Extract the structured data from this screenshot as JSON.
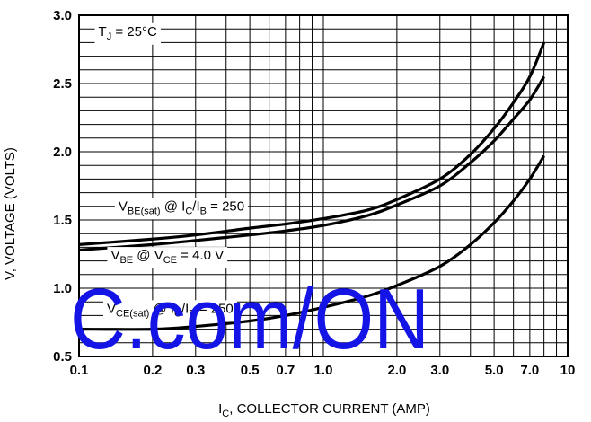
{
  "chart_data": {
    "type": "line",
    "xscale": "log",
    "xlim": [
      0.1,
      10
    ],
    "ylim": [
      0.5,
      3.0
    ],
    "grid": true,
    "xlabel": {
      "main": "I",
      "sub": "C",
      "rest": ", COLLECTOR CURRENT (AMP)"
    },
    "ylabel": "V, VOLTAGE (VOLTS)",
    "x_ticks": [
      {
        "value": 0.1,
        "label": "0.1"
      },
      {
        "value": 0.2,
        "label": "0.2"
      },
      {
        "value": 0.3,
        "label": "0.3"
      },
      {
        "value": 0.5,
        "label": "0.5"
      },
      {
        "value": 0.7,
        "label": "0.7"
      },
      {
        "value": 1.0,
        "label": "1.0"
      },
      {
        "value": 2.0,
        "label": "2.0"
      },
      {
        "value": 3.0,
        "label": "3.0"
      },
      {
        "value": 5.0,
        "label": "5.0"
      },
      {
        "value": 7.0,
        "label": "7.0"
      },
      {
        "value": 10,
        "label": "10"
      }
    ],
    "y_ticks": [
      {
        "value": 0.5,
        "label": "0.5"
      },
      {
        "value": 1.0,
        "label": "1.0"
      },
      {
        "value": 1.5,
        "label": "1.5"
      },
      {
        "value": 2.0,
        "label": "2.0"
      },
      {
        "value": 2.5,
        "label": "2.5"
      },
      {
        "value": 3.0,
        "label": "3.0"
      }
    ],
    "series": [
      {
        "id": "vbe-sat",
        "x": [
          0.1,
          0.2,
          0.3,
          0.5,
          0.7,
          1.0,
          1.5,
          2.0,
          3.0,
          4.0,
          5.0,
          6.0,
          7.0,
          8.0
        ],
        "y": [
          1.32,
          1.36,
          1.39,
          1.44,
          1.47,
          1.51,
          1.57,
          1.65,
          1.8,
          1.98,
          2.17,
          2.36,
          2.55,
          2.8
        ]
      },
      {
        "id": "vbe-on",
        "x": [
          0.1,
          0.2,
          0.3,
          0.5,
          0.7,
          1.0,
          1.5,
          2.0,
          3.0,
          4.0,
          5.0,
          6.0,
          7.0,
          8.0
        ],
        "y": [
          1.28,
          1.32,
          1.35,
          1.39,
          1.42,
          1.46,
          1.53,
          1.61,
          1.75,
          1.92,
          2.08,
          2.24,
          2.38,
          2.55
        ]
      },
      {
        "id": "vce-sat",
        "x": [
          0.1,
          0.2,
          0.3,
          0.5,
          0.7,
          1.0,
          1.5,
          2.0,
          3.0,
          4.0,
          5.0,
          6.0,
          7.0,
          8.0
        ],
        "y": [
          0.7,
          0.7,
          0.72,
          0.76,
          0.8,
          0.86,
          0.94,
          1.02,
          1.16,
          1.32,
          1.48,
          1.64,
          1.8,
          1.97
        ]
      }
    ],
    "annotations": [
      {
        "id": "tj",
        "parts": [
          {
            "t": "T"
          },
          {
            "t": "J",
            "sub": true
          },
          {
            "t": " = 25°C"
          }
        ],
        "x": 0.12,
        "y": 2.85
      },
      {
        "id": "vbe-sat-label",
        "parts": [
          {
            "t": "V"
          },
          {
            "t": "BE(sat)",
            "sub": true
          },
          {
            "t": " @ I"
          },
          {
            "t": "C",
            "sub": true
          },
          {
            "t": "/I"
          },
          {
            "t": "B",
            "sub": true
          },
          {
            "t": " = 250"
          }
        ],
        "x": 0.145,
        "y": 1.57
      },
      {
        "id": "vbe-on-label",
        "parts": [
          {
            "t": "V"
          },
          {
            "t": "BE",
            "sub": true
          },
          {
            "t": " @ V"
          },
          {
            "t": "CE",
            "sub": true
          },
          {
            "t": " = 4.0 V"
          }
        ],
        "x": 0.135,
        "y": 1.21
      },
      {
        "id": "vce-sat-label",
        "parts": [
          {
            "t": "V"
          },
          {
            "t": "CE(sat)",
            "sub": true
          },
          {
            "t": " @ I"
          },
          {
            "t": "C",
            "sub": true
          },
          {
            "t": "/I"
          },
          {
            "t": "B",
            "sub": true
          },
          {
            "t": " = 250"
          }
        ],
        "x": 0.13,
        "y": 0.82
      }
    ]
  },
  "watermark": {
    "text": "C.com/ON",
    "color": "#1414e6"
  }
}
